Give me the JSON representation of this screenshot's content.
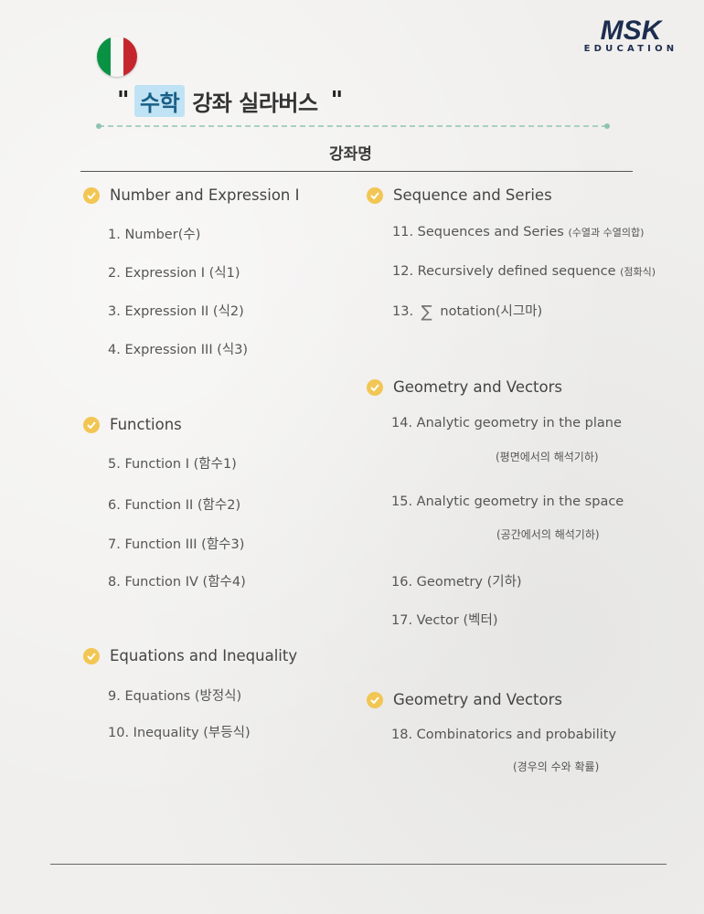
{
  "brand": {
    "logo_top": "MSK",
    "logo_bottom": "EDUCATION",
    "colors": {
      "navy": "#1d2d4f",
      "flag_green": "#0a9244",
      "flag_white": "#f6f6f4",
      "flag_red": "#c5262e"
    }
  },
  "header": {
    "flag_icon": "italy-flag-icon",
    "quote_open": "\"",
    "title_highlight": "수학",
    "title_rest": "강좌 실라버스",
    "quote_close": "\"",
    "course_label": "강좌명"
  },
  "left": {
    "sections": [
      {
        "title": "Number and Expression I",
        "items": [
          "1. Number(수)",
          "2. Expression I (식1)",
          "3. Expression II (식2)",
          "4. Expression III (식3)"
        ]
      },
      {
        "title": "Functions",
        "items": [
          "5. Function I (함수1)",
          "6. Function II (함수2)",
          "7. Function III (함수3)",
          "8. Function IV (함수4)"
        ]
      },
      {
        "title": "Equations and Inequality",
        "items": [
          "9. Equations (방정식)",
          "10. Inequality (부등식)"
        ]
      }
    ]
  },
  "right": {
    "sections": [
      {
        "title": "Sequence and Series",
        "items": [
          {
            "main": "11. Sequences and Series",
            "note": "(수열과 수열의합)"
          },
          {
            "main": "12. Recursively defined sequence",
            "note": "(점화식)"
          },
          {
            "prefix": "13.",
            "symbol": "∑",
            "main": "notation(시그마)"
          }
        ]
      },
      {
        "title": "Geometry and Vectors",
        "items": [
          {
            "main": "14. Analytic geometry in the plane",
            "note": "(평면에서의 해석기하)"
          },
          {
            "main": "15. Analytic geometry in the space",
            "note": "(공간에서의 해석기하)"
          },
          {
            "main": "16. Geometry (기하)"
          },
          {
            "main": "17. Vector (벡터)"
          }
        ]
      },
      {
        "title": "Geometry and Vectors",
        "items": [
          {
            "main": "18. Combinatorics and probability",
            "note": "(경우의 수와 확률)"
          }
        ]
      }
    ]
  }
}
